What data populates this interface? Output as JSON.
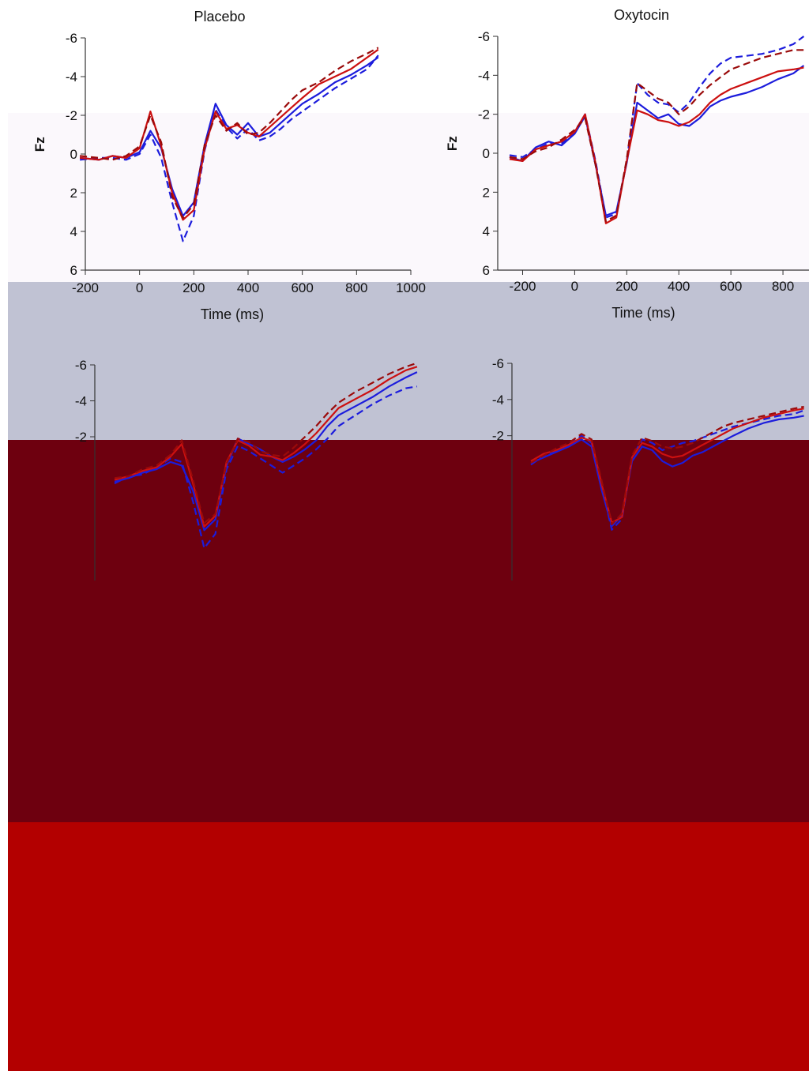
{
  "titles": {
    "left": "Placebo",
    "right": "Oxytocin"
  },
  "band_colors": [
    "#fbf8fc",
    "#c0c2d3",
    "#6e000f",
    "#b30000"
  ],
  "chart_data": [
    {
      "type": "line",
      "title": "Placebo",
      "ylabel": "Fz",
      "xlabel": "Time (ms)",
      "xlim": [
        -200,
        1000
      ],
      "ylim": [
        6,
        -6
      ],
      "x_ticks": [
        "-200",
        "0",
        "200",
        "400",
        "600",
        "800",
        "1000"
      ],
      "y_ticks": [
        "-6",
        "-4",
        "-2",
        "0",
        "2",
        "4",
        "6"
      ],
      "x": [
        -220,
        -150,
        -100,
        -50,
        0,
        40,
        80,
        120,
        160,
        200,
        240,
        280,
        320,
        360,
        400,
        440,
        480,
        520,
        560,
        600,
        660,
        720,
        780,
        840,
        880
      ],
      "series": [
        {
          "color": "#1c1cdc",
          "dash": false,
          "values": [
            0.2,
            0.3,
            0.1,
            0.2,
            -0.1,
            -1.2,
            -0.3,
            1.8,
            3.2,
            2.5,
            -0.5,
            -2.6,
            -1.5,
            -1.0,
            -1.6,
            -0.9,
            -1.1,
            -1.6,
            -2.1,
            -2.6,
            -3.1,
            -3.7,
            -4.1,
            -4.6,
            -5.0
          ]
        },
        {
          "color": "#1c1cdc",
          "dash": true,
          "values": [
            0.3,
            0.2,
            0.2,
            0.3,
            0.0,
            -1.0,
            0.2,
            2.5,
            4.5,
            3.2,
            -0.2,
            -2.3,
            -1.4,
            -0.8,
            -1.3,
            -0.7,
            -0.9,
            -1.3,
            -1.8,
            -2.2,
            -2.8,
            -3.4,
            -3.9,
            -4.4,
            -5.1
          ]
        },
        {
          "color": "#cc1010",
          "dash": false,
          "values": [
            0.2,
            0.3,
            0.1,
            0.2,
            -0.3,
            -2.2,
            -0.4,
            2.0,
            3.4,
            2.9,
            -0.3,
            -2.2,
            -1.3,
            -1.5,
            -1.1,
            -0.9,
            -1.4,
            -1.9,
            -2.4,
            -2.9,
            -3.6,
            -4.0,
            -4.4,
            -5.0,
            -5.4
          ]
        },
        {
          "color": "#9a0a0a",
          "dash": true,
          "values": [
            0.1,
            0.2,
            0.3,
            0.1,
            -0.4,
            -2.0,
            -0.6,
            2.2,
            3.3,
            2.6,
            -0.5,
            -2.0,
            -1.2,
            -1.6,
            -1.0,
            -1.1,
            -1.6,
            -2.2,
            -2.8,
            -3.3,
            -3.7,
            -4.3,
            -4.8,
            -5.2,
            -5.5
          ]
        }
      ]
    },
    {
      "type": "line",
      "title": "Oxytocin",
      "ylabel": "Fz",
      "xlabel": "Time (ms)",
      "xlim": [
        -250,
        900
      ],
      "ylim": [
        6,
        -6
      ],
      "x_ticks": [
        "-200",
        "0",
        "200",
        "400",
        "600",
        "800"
      ],
      "y_ticks": [
        "-6",
        "-4",
        "-2",
        "0",
        "2",
        "4",
        "6"
      ],
      "x": [
        -250,
        -200,
        -150,
        -100,
        -50,
        0,
        40,
        80,
        120,
        160,
        200,
        240,
        280,
        320,
        360,
        400,
        440,
        480,
        520,
        560,
        600,
        660,
        720,
        780,
        840,
        880
      ],
      "series": [
        {
          "color": "#1c1cdc",
          "dash": false,
          "values": [
            0.2,
            0.4,
            -0.3,
            -0.6,
            -0.4,
            -1.0,
            -1.9,
            0.6,
            3.2,
            3.0,
            0.5,
            -2.6,
            -2.2,
            -1.8,
            -2.0,
            -1.5,
            -1.4,
            -1.8,
            -2.4,
            -2.7,
            -2.9,
            -3.1,
            -3.4,
            -3.8,
            -4.1,
            -4.5
          ]
        },
        {
          "color": "#1c1cdc",
          "dash": true,
          "values": [
            0.1,
            0.2,
            -0.2,
            -0.5,
            -0.5,
            -1.1,
            -2.0,
            0.4,
            3.3,
            3.1,
            0.4,
            -3.6,
            -3.0,
            -2.6,
            -2.5,
            -2.1,
            -2.6,
            -3.4,
            -4.1,
            -4.6,
            -4.9,
            -5.0,
            -5.1,
            -5.3,
            -5.6,
            -6.0
          ]
        },
        {
          "color": "#cc1010",
          "dash": false,
          "values": [
            0.3,
            0.4,
            -0.2,
            -0.4,
            -0.6,
            -1.1,
            -2.0,
            0.5,
            3.6,
            3.3,
            0.4,
            -2.2,
            -2.0,
            -1.7,
            -1.6,
            -1.4,
            -1.6,
            -2.0,
            -2.6,
            -3.0,
            -3.3,
            -3.6,
            -3.9,
            -4.2,
            -4.3,
            -4.4
          ]
        },
        {
          "color": "#9a0a0a",
          "dash": true,
          "values": [
            0.2,
            0.3,
            -0.1,
            -0.3,
            -0.7,
            -1.2,
            -1.8,
            0.6,
            3.5,
            3.2,
            0.3,
            -3.6,
            -3.2,
            -2.8,
            -2.6,
            -2.0,
            -2.4,
            -3.0,
            -3.5,
            -3.9,
            -4.3,
            -4.6,
            -4.9,
            -5.1,
            -5.3,
            -5.3
          ]
        }
      ]
    },
    {
      "type": "line",
      "title": "",
      "ylabel": "",
      "xlabel": "",
      "xlim": [
        -200,
        900
      ],
      "ylim": [
        6,
        -6
      ],
      "x_ticks": [],
      "y_ticks": [
        "-6",
        "-4",
        "-2"
      ],
      "x": [
        -200,
        -150,
        -100,
        -50,
        0,
        40,
        80,
        120,
        160,
        200,
        240,
        280,
        320,
        360,
        400,
        440,
        480,
        520,
        560,
        600,
        660,
        720,
        780,
        840,
        880
      ],
      "series": [
        {
          "color": "#1c1cdc",
          "dash": false,
          "values": [
            0.5,
            0.3,
            0.0,
            -0.2,
            -0.6,
            -0.4,
            1.0,
            3.2,
            2.6,
            -0.4,
            -1.9,
            -1.6,
            -1.3,
            -0.9,
            -0.6,
            -0.9,
            -1.3,
            -1.8,
            -2.6,
            -3.2,
            -3.7,
            -4.2,
            -4.8,
            -5.3,
            -5.6
          ]
        },
        {
          "color": "#1c1cdc",
          "dash": true,
          "values": [
            0.6,
            0.2,
            0.1,
            -0.3,
            -0.8,
            -0.6,
            1.6,
            4.2,
            3.4,
            -0.2,
            -1.5,
            -1.2,
            -0.8,
            -0.4,
            0.0,
            -0.4,
            -0.8,
            -1.3,
            -1.9,
            -2.6,
            -3.2,
            -3.8,
            -4.3,
            -4.7,
            -4.8
          ]
        },
        {
          "color": "#cc1010",
          "dash": false,
          "values": [
            0.4,
            0.2,
            -0.1,
            -0.3,
            -0.9,
            -1.6,
            0.6,
            3.0,
            2.4,
            -0.6,
            -1.8,
            -1.5,
            -1.0,
            -0.9,
            -0.7,
            -1.1,
            -1.6,
            -2.2,
            -2.9,
            -3.6,
            -4.1,
            -4.6,
            -5.2,
            -5.7,
            -5.9
          ]
        },
        {
          "color": "#9a0a0a",
          "dash": true,
          "values": [
            0.3,
            0.2,
            -0.2,
            -0.4,
            -1.0,
            -1.8,
            0.4,
            2.8,
            2.3,
            -0.5,
            -1.9,
            -1.7,
            -1.2,
            -1.0,
            -0.9,
            -1.4,
            -2.0,
            -2.6,
            -3.3,
            -3.9,
            -4.5,
            -5.0,
            -5.5,
            -5.9,
            -6.1
          ]
        }
      ]
    },
    {
      "type": "line",
      "title": "",
      "ylabel": "",
      "xlabel": "",
      "xlim": [
        -200,
        900
      ],
      "ylim": [
        6,
        -6
      ],
      "x_ticks": [],
      "y_ticks": [
        "-6",
        "-4",
        "-2"
      ],
      "x": [
        -200,
        -150,
        -100,
        -50,
        0,
        40,
        80,
        120,
        160,
        200,
        240,
        280,
        320,
        360,
        400,
        440,
        480,
        520,
        560,
        600,
        660,
        720,
        780,
        840,
        880
      ],
      "series": [
        {
          "color": "#1c1cdc",
          "dash": false,
          "values": [
            -0.5,
            -0.8,
            -1.1,
            -1.4,
            -1.8,
            -1.4,
            1.0,
            3.0,
            2.4,
            -0.6,
            -1.4,
            -1.2,
            -0.6,
            -0.3,
            -0.5,
            -0.9,
            -1.1,
            -1.4,
            -1.7,
            -2.0,
            -2.4,
            -2.7,
            -2.9,
            -3.0,
            -3.1
          ]
        },
        {
          "color": "#1c1cdc",
          "dash": true,
          "values": [
            -0.4,
            -0.9,
            -1.2,
            -1.5,
            -2.0,
            -1.6,
            0.8,
            3.2,
            2.6,
            -0.8,
            -1.8,
            -1.6,
            -1.2,
            -1.4,
            -1.6,
            -1.7,
            -1.9,
            -2.1,
            -2.3,
            -2.5,
            -2.7,
            -2.9,
            -3.1,
            -3.2,
            -3.4
          ]
        },
        {
          "color": "#cc1010",
          "dash": false,
          "values": [
            -0.6,
            -1.0,
            -1.2,
            -1.5,
            -1.9,
            -1.7,
            0.7,
            2.8,
            2.5,
            -0.8,
            -1.6,
            -1.4,
            -1.0,
            -0.8,
            -0.9,
            -1.2,
            -1.5,
            -1.8,
            -2.1,
            -2.4,
            -2.7,
            -3.0,
            -3.2,
            -3.4,
            -3.5
          ]
        },
        {
          "color": "#9a0a0a",
          "dash": true,
          "values": [
            -0.5,
            -0.9,
            -1.3,
            -1.6,
            -2.1,
            -1.8,
            0.5,
            2.9,
            2.3,
            -0.9,
            -1.9,
            -1.7,
            -1.4,
            -1.3,
            -1.4,
            -1.6,
            -1.9,
            -2.2,
            -2.5,
            -2.7,
            -2.9,
            -3.1,
            -3.3,
            -3.5,
            -3.6
          ]
        }
      ]
    }
  ]
}
